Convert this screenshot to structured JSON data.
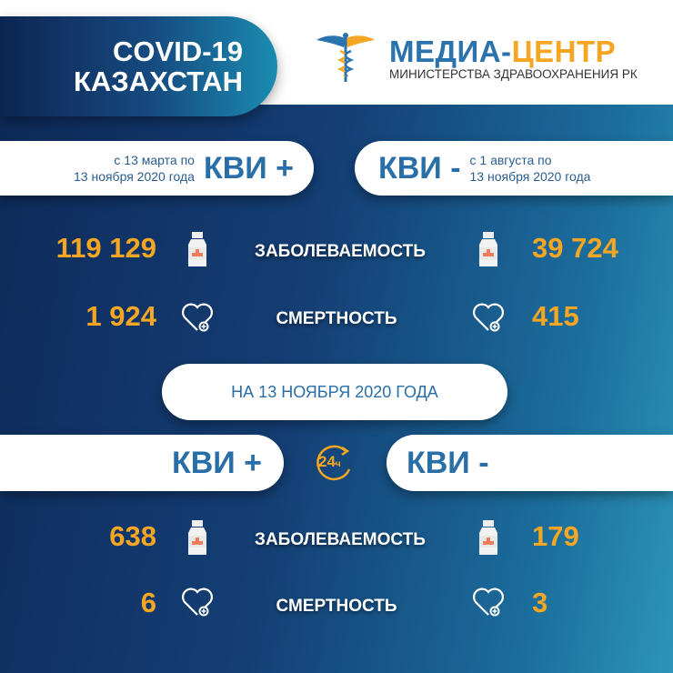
{
  "header": {
    "title_line1": "COVID-19",
    "title_line2": "КАЗАХСТАН",
    "brand_part1": "МЕДИА-",
    "brand_part2": "ЦЕНТР",
    "brand_sub": "МИНИСТЕРСТВА ЗДРАВООХРАНЕНИЯ РК",
    "logo_icon": "caduceus-icon"
  },
  "colors": {
    "accent_orange": "#f5a623",
    "brand_blue": "#2a73ae",
    "bg_dark": "#0e2a5a",
    "bg_light": "#2d95b8"
  },
  "cumulative": {
    "left": {
      "label": "КВИ +",
      "period_line1": "с 13 марта по",
      "period_line2": "13 ноября 2020 года",
      "cases": "119 129",
      "deaths": "1 924"
    },
    "right": {
      "label": "КВИ -",
      "period_line1": "с 1 августа  по",
      "period_line2": "13 ноября 2020 года",
      "cases": "39 724",
      "deaths": "415"
    }
  },
  "labels": {
    "cases": "ЗАБОЛЕВАЕМОСТЬ",
    "deaths": "СМЕРТНОСТЬ"
  },
  "daily": {
    "date_label": "НА 13 НОЯБРЯ  2020 ГОДА",
    "badge": "24",
    "badge_unit": "ч",
    "left": {
      "label": "КВИ +",
      "cases": "638",
      "deaths": "6"
    },
    "right": {
      "label": "КВИ -",
      "cases": "179",
      "deaths": "3"
    }
  }
}
